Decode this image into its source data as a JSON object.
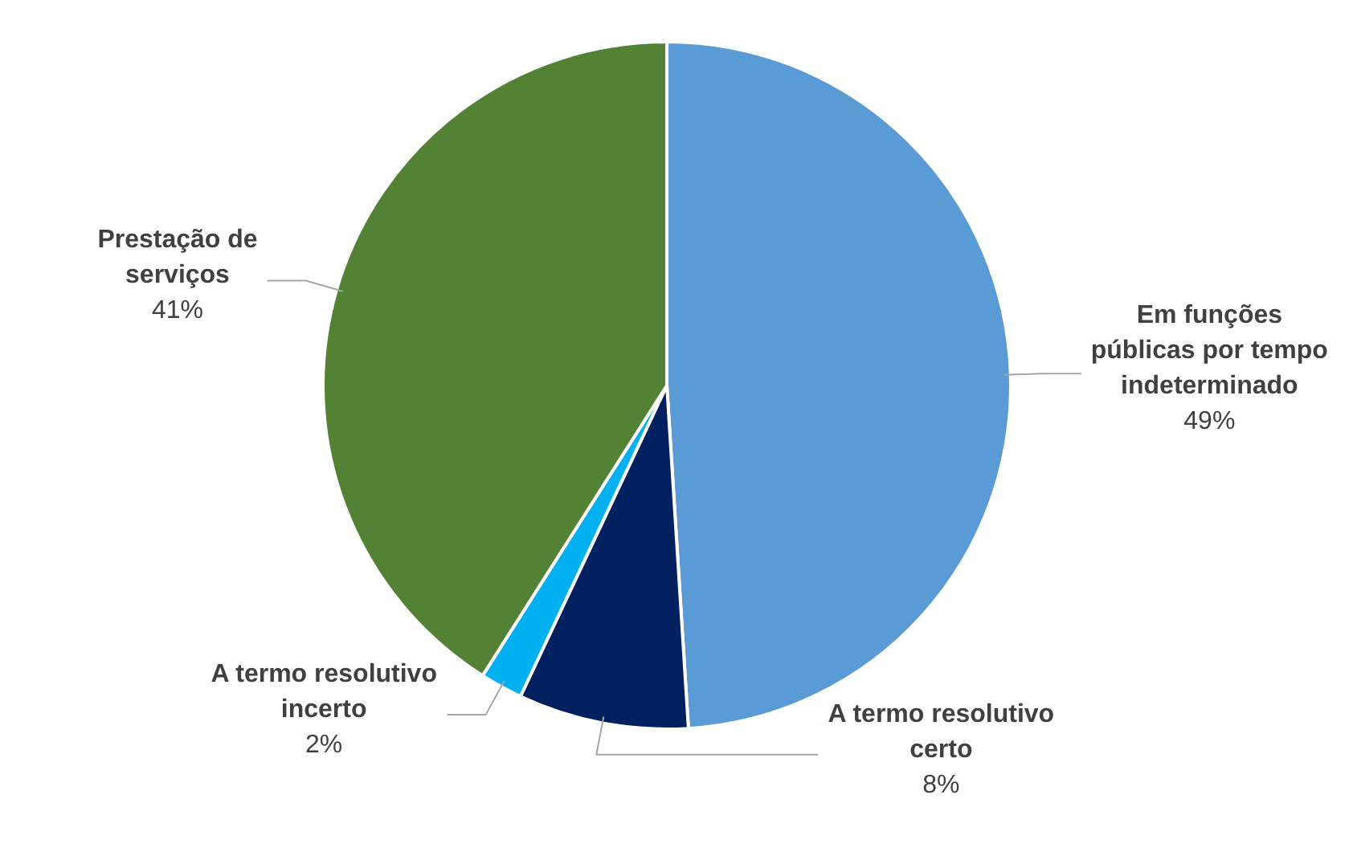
{
  "chart_data": {
    "type": "pie",
    "categories": [
      "Em funções públicas por tempo indeterminado",
      "A termo resolutivo certo",
      "A termo resolutivo incerto",
      "Prestação de serviços"
    ],
    "values": [
      49,
      8,
      2,
      41
    ],
    "colors": [
      "#5b9bd5",
      "#002060",
      "#00b0f0",
      "#548235"
    ],
    "value_labels": [
      "49%",
      "8%",
      "2%",
      "41%"
    ],
    "legend": false
  }
}
